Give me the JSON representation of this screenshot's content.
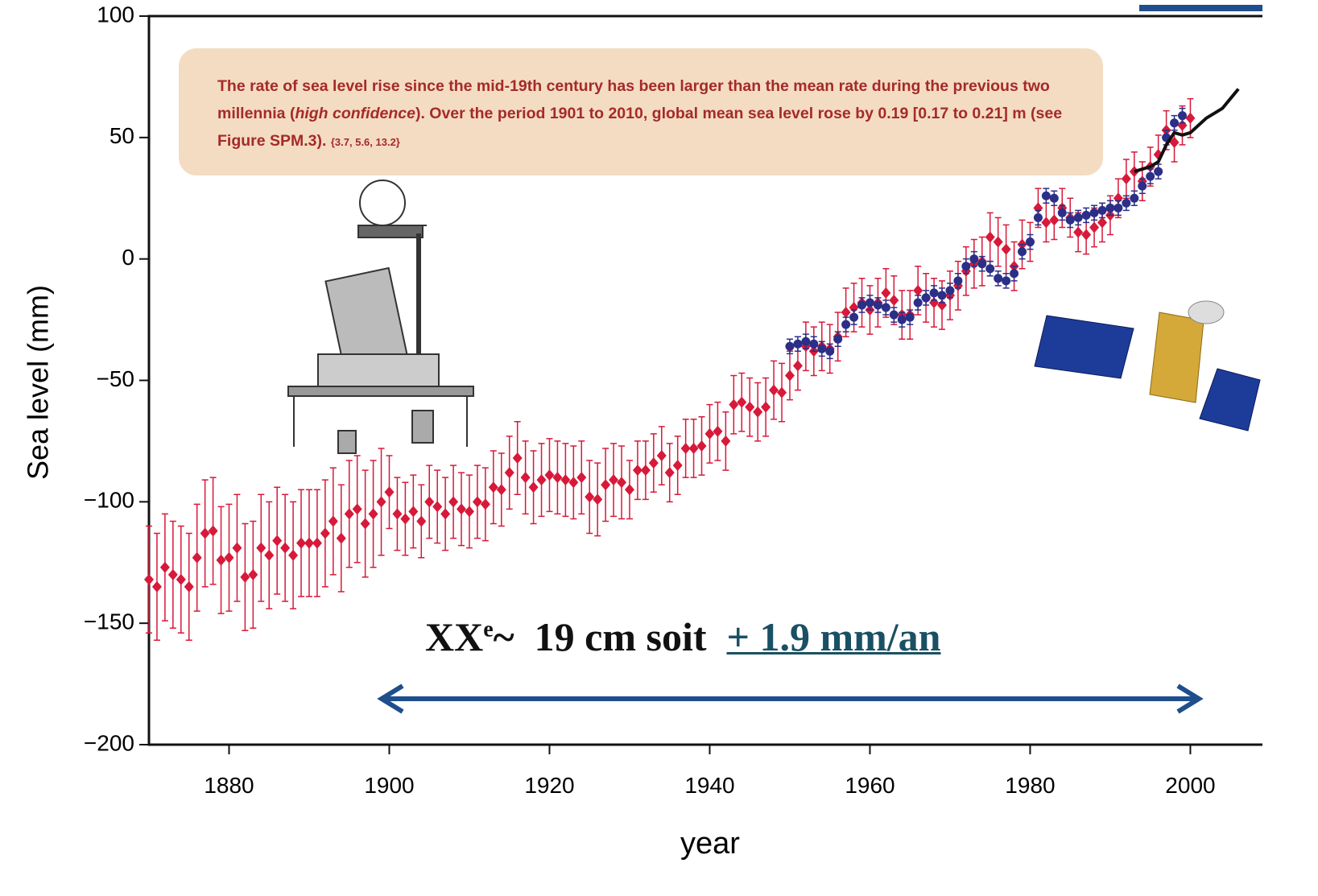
{
  "chart_data": {
    "type": "errorbar-scatter",
    "ylabel": "Sea level (mm)",
    "xlabel": "year",
    "xlim": [
      1870,
      2009
    ],
    "ylim": [
      -200,
      100
    ],
    "xticks": [
      1880,
      1900,
      1920,
      1940,
      1960,
      1980,
      2000
    ],
    "yticks": [
      {
        "value": -200,
        "label": "−200"
      },
      {
        "value": -150,
        "label": "−150"
      },
      {
        "value": -100,
        "label": "−100"
      },
      {
        "value": -50,
        "label": "−50"
      },
      0,
      50,
      100
    ],
    "series": [
      {
        "color": "#d7193a",
        "marker": "diamond",
        "x": [
          1870,
          1871,
          1872,
          1873,
          1874,
          1875,
          1876,
          1877,
          1878,
          1879,
          1880,
          1881,
          1882,
          1883,
          1884,
          1885,
          1886,
          1887,
          1888,
          1889,
          1890,
          1891,
          1892,
          1893,
          1894,
          1895,
          1896,
          1897,
          1898,
          1899,
          1900,
          1901,
          1902,
          1903,
          1904,
          1905,
          1906,
          1907,
          1908,
          1909,
          1910,
          1911,
          1912,
          1913,
          1914,
          1915,
          1916,
          1917,
          1918,
          1919,
          1920,
          1921,
          1922,
          1923,
          1924,
          1925,
          1926,
          1927,
          1928,
          1929,
          1930,
          1931,
          1932,
          1933,
          1934,
          1935,
          1936,
          1937,
          1938,
          1939,
          1940,
          1941,
          1942,
          1943,
          1944,
          1945,
          1946,
          1947,
          1948,
          1949,
          1950,
          1951,
          1952,
          1953,
          1954,
          1955,
          1956,
          1957,
          1958,
          1959,
          1960,
          1961,
          1962,
          1963,
          1964,
          1965,
          1966,
          1967,
          1968,
          1969,
          1970,
          1971,
          1972,
          1973,
          1974,
          1975,
          1976,
          1977,
          1978,
          1979,
          1980,
          1981,
          1982,
          1983,
          1984,
          1985,
          1986,
          1987,
          1988,
          1989,
          1990,
          1991,
          1992,
          1993,
          1994,
          1995,
          1996,
          1997,
          1998,
          1999,
          2000
        ],
        "values": [
          -132,
          -135,
          -127,
          -130,
          -132,
          -135,
          -123,
          -113,
          -112,
          -124,
          -123,
          -119,
          -131,
          -130,
          -119,
          -122,
          -116,
          -119,
          -122,
          -117,
          -117,
          -117,
          -113,
          -108,
          -115,
          -105,
          -103,
          -109,
          -105,
          -100,
          -96,
          -105,
          -107,
          -104,
          -108,
          -100,
          -102,
          -105,
          -100,
          -103,
          -104,
          -100,
          -101,
          -94,
          -95,
          -88,
          -82,
          -90,
          -94,
          -91,
          -89,
          -90,
          -91,
          -92,
          -90,
          -98,
          -99,
          -93,
          -91,
          -92,
          -95,
          -87,
          -87,
          -84,
          -81,
          -88,
          -85,
          -78,
          -78,
          -77,
          -72,
          -71,
          -75,
          -60,
          -59,
          -61,
          -63,
          -61,
          -54,
          -55,
          -48,
          -44,
          -36,
          -38,
          -36,
          -37,
          -32,
          -22,
          -20,
          -18,
          -21,
          -18,
          -14,
          -17,
          -23,
          -23,
          -13,
          -16,
          -18,
          -19,
          -15,
          -11,
          -5,
          -2,
          -1,
          9,
          7,
          4,
          -3,
          6,
          7,
          21,
          15,
          16,
          21,
          17,
          11,
          10,
          13,
          15,
          18,
          25,
          33,
          36,
          32,
          38,
          43,
          53,
          48,
          55,
          58
        ],
        "errors": [
          22,
          22,
          22,
          22,
          22,
          22,
          22,
          22,
          22,
          22,
          22,
          22,
          22,
          22,
          22,
          22,
          22,
          22,
          22,
          22,
          22,
          22,
          22,
          22,
          22,
          22,
          22,
          22,
          22,
          22,
          15,
          15,
          15,
          15,
          15,
          15,
          15,
          15,
          15,
          15,
          15,
          15,
          15,
          15,
          15,
          15,
          15,
          15,
          15,
          15,
          15,
          15,
          15,
          15,
          15,
          15,
          15,
          15,
          15,
          15,
          12,
          12,
          12,
          12,
          12,
          12,
          12,
          12,
          12,
          12,
          12,
          12,
          12,
          12,
          12,
          12,
          12,
          12,
          12,
          12,
          10,
          10,
          10,
          10,
          10,
          10,
          10,
          10,
          10,
          10,
          10,
          10,
          10,
          10,
          10,
          10,
          10,
          10,
          10,
          10,
          10,
          10,
          10,
          10,
          10,
          10,
          10,
          10,
          10,
          10,
          8,
          8,
          8,
          8,
          8,
          8,
          8,
          8,
          8,
          8,
          8,
          8,
          8,
          8,
          8,
          8,
          8,
          8,
          8,
          8,
          8
        ]
      },
      {
        "color": "#2b2f87",
        "marker": "circle",
        "x": [
          1950,
          1951,
          1952,
          1953,
          1954,
          1955,
          1956,
          1957,
          1958,
          1959,
          1960,
          1961,
          1962,
          1963,
          1964,
          1965,
          1966,
          1967,
          1968,
          1969,
          1970,
          1971,
          1972,
          1973,
          1974,
          1975,
          1976,
          1977,
          1978,
          1979,
          1980,
          1981,
          1982,
          1983,
          1984,
          1985,
          1986,
          1987,
          1988,
          1989,
          1990,
          1991,
          1992,
          1993,
          1994,
          1995,
          1996,
          1997,
          1998,
          1999
        ],
        "values": [
          -36,
          -35,
          -34,
          -35,
          -37,
          -38,
          -33,
          -27,
          -24,
          -19,
          -18,
          -19,
          -20,
          -23,
          -25,
          -24,
          -18,
          -16,
          -14,
          -15,
          -13,
          -9,
          -3,
          0,
          -2,
          -4,
          -8,
          -9,
          -6,
          3,
          7,
          17,
          26,
          25,
          19,
          16,
          17,
          18,
          19,
          20,
          21,
          21,
          23,
          25,
          30,
          34,
          36,
          50,
          56,
          59
        ],
        "error": 3
      },
      {
        "color": "#111111",
        "marker": "line",
        "x": [
          1993,
          1994,
          1995,
          1996,
          1997,
          1998,
          1999,
          2000,
          2001,
          2002,
          2003,
          2004,
          2005,
          2006
        ],
        "values": [
          36,
          37,
          38,
          40,
          47,
          52,
          51,
          52,
          55,
          58,
          60,
          62,
          66,
          70
        ]
      }
    ],
    "annotation": [
      "The rate of sea level rise since the mid-19th century has been larger than the mean rate during the previous two millennia (",
      "high confidence",
      "). Over the period 1901 to 2010, global mean sea level rose by 0.19 [0.17 to 0.21] m (see Figure SPM.3). ",
      "{3.7, 5.6, 13.2}"
    ],
    "headline": [
      "XX",
      "e",
      "~  19 cm soit ",
      "+ 1.9 mm/an"
    ]
  }
}
